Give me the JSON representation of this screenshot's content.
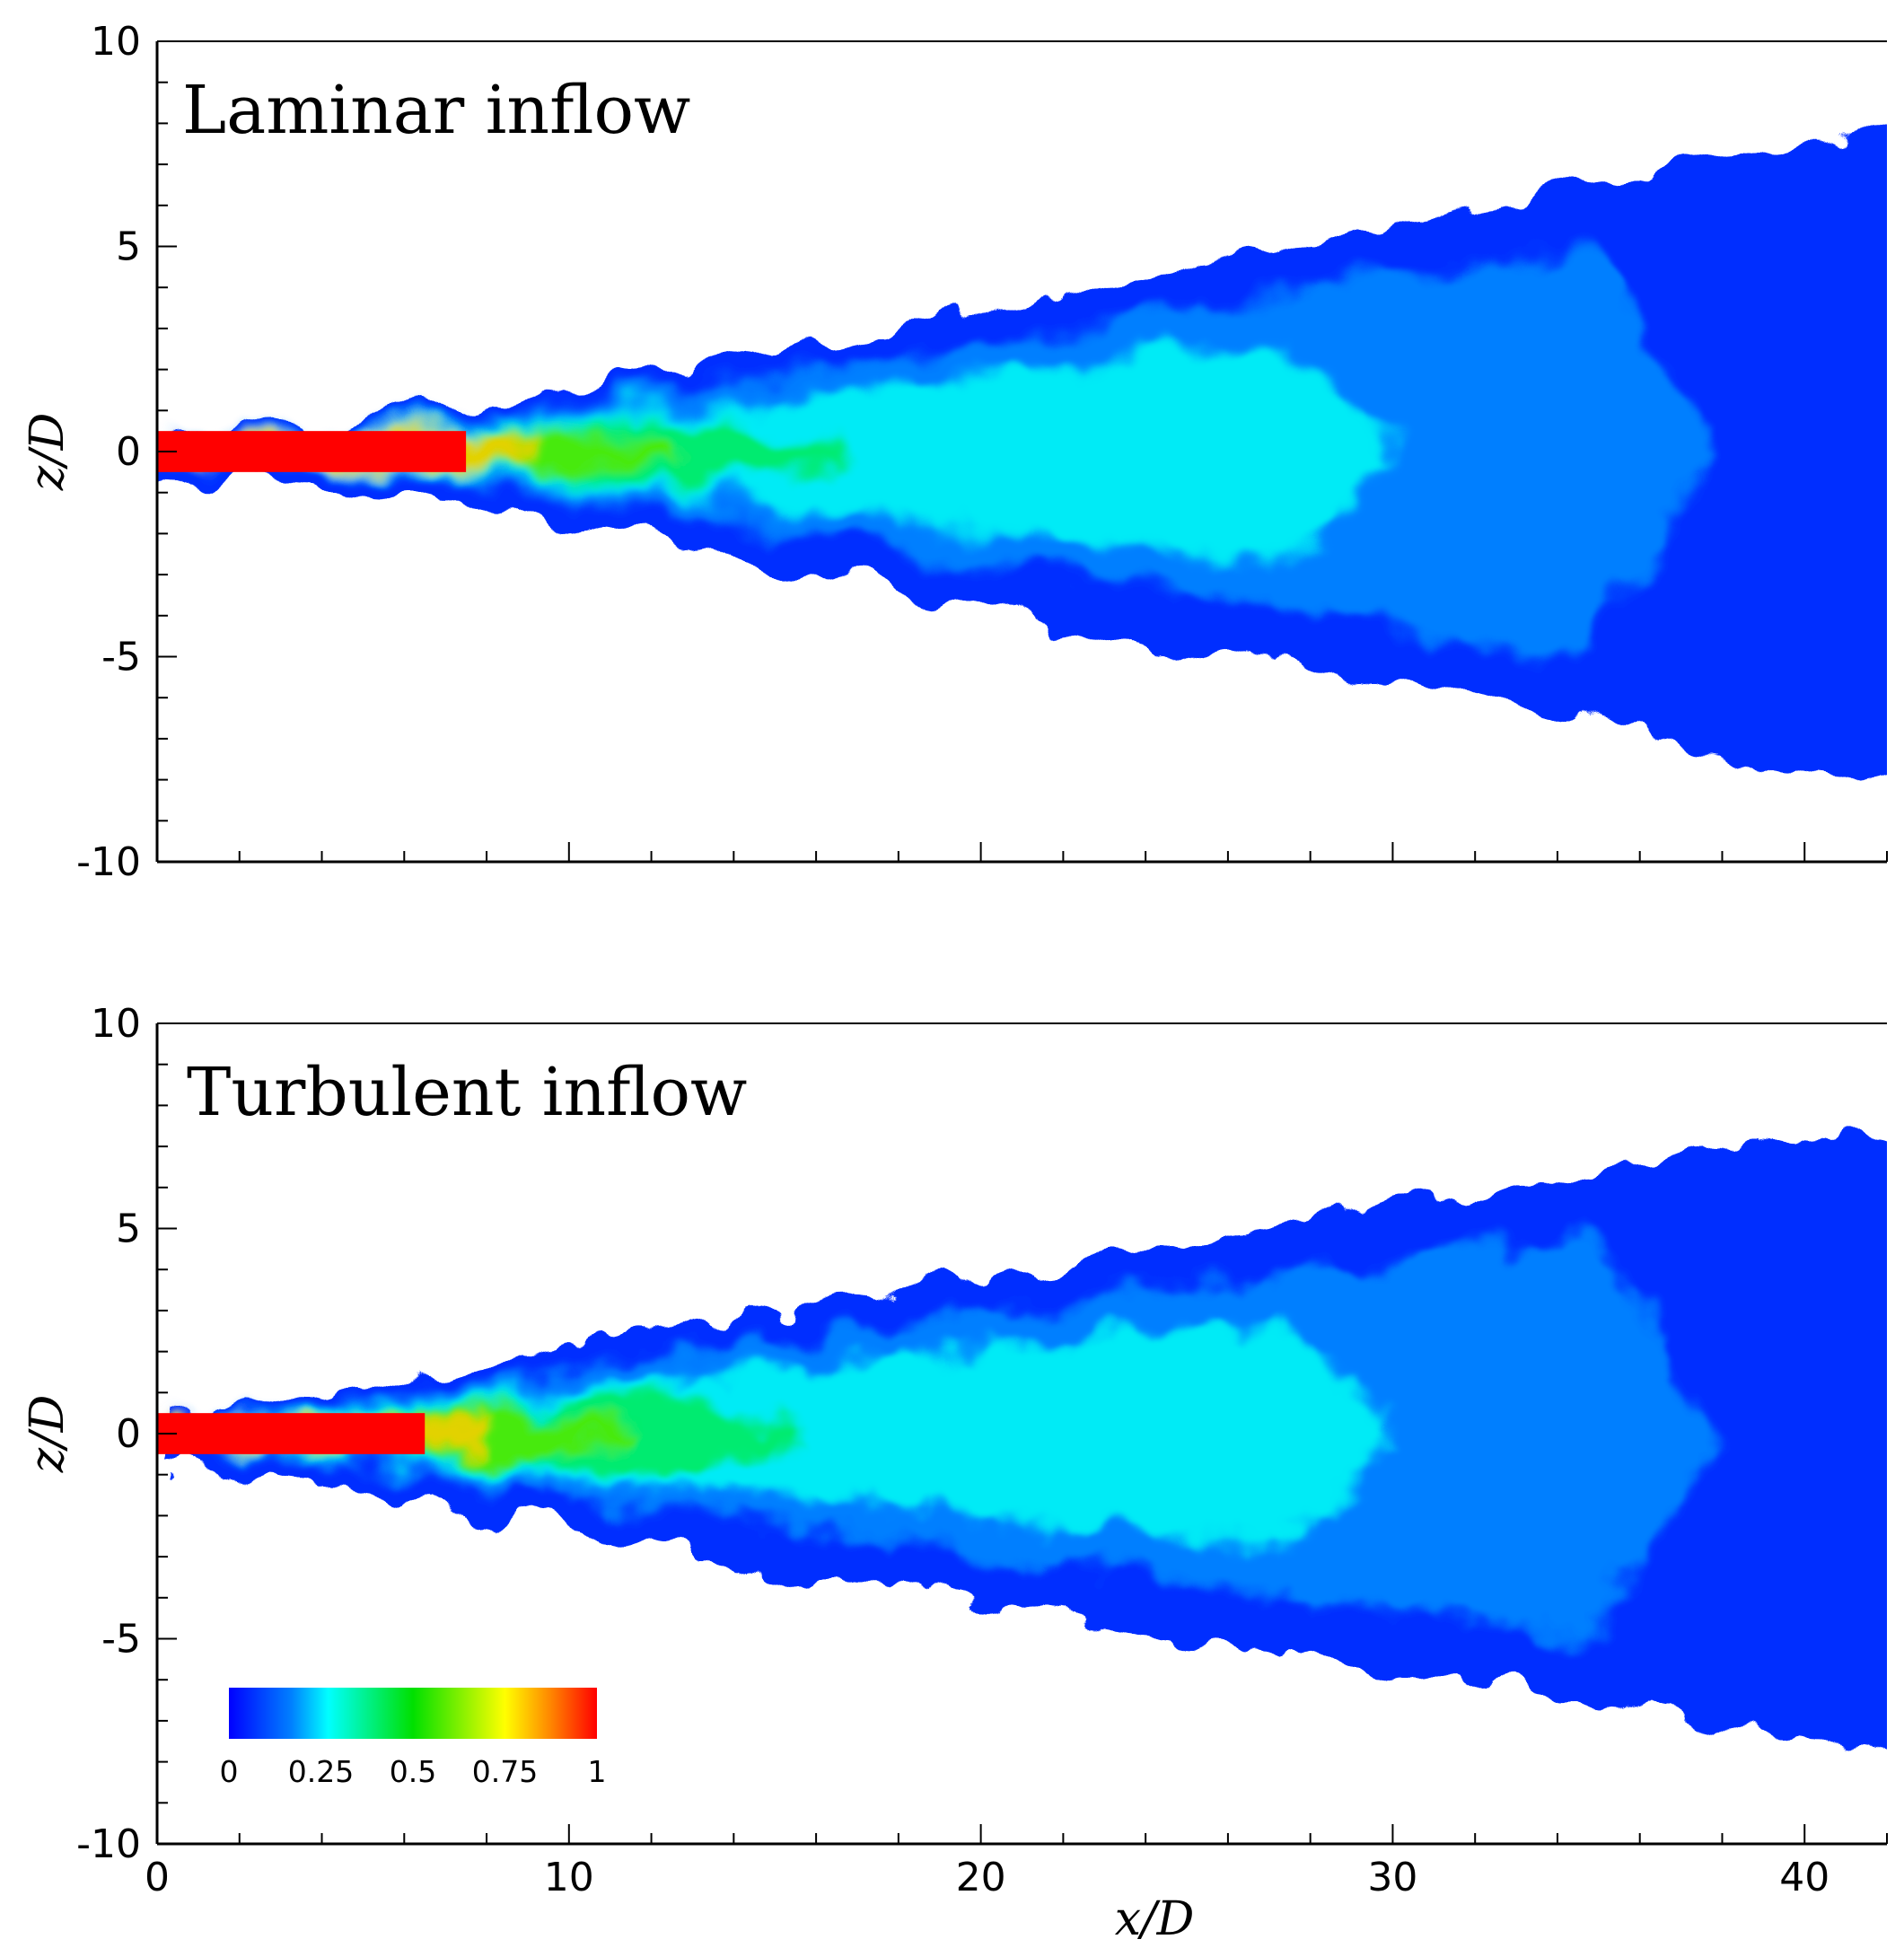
{
  "chart_data": [
    {
      "type": "heatmap",
      "title": "Laminar inflow",
      "xlabel": "",
      "ylabel": "z/D",
      "xlim": [
        0,
        42
      ],
      "ylim": [
        -10,
        10
      ],
      "x_ticks": [
        0,
        10,
        20,
        30,
        40
      ],
      "y_ticks": [
        -10,
        -5,
        0,
        5,
        10
      ],
      "y_tick_labels": [
        "-10",
        "-5",
        "0",
        "5",
        "10"
      ],
      "x_tick_labels_shown": false,
      "field": {
        "description_hidden": true,
        "core_length": 7.5,
        "spread_start": 7,
        "half_width_at_end": 7.5
      }
    },
    {
      "type": "heatmap",
      "title": "Turbulent inflow",
      "xlabel": "x/D",
      "ylabel": "z/D",
      "xlim": [
        0,
        42
      ],
      "ylim": [
        -10,
        10
      ],
      "x_ticks": [
        0,
        10,
        20,
        30,
        40
      ],
      "x_tick_labels": [
        "0",
        "10",
        "20",
        "30",
        "40"
      ],
      "y_ticks": [
        -10,
        -5,
        0,
        5,
        10
      ],
      "y_tick_labels": [
        "-10",
        "-5",
        "0",
        "5",
        "10"
      ],
      "field": {
        "description_hidden": true,
        "core_length": 6.5,
        "spread_start": 1,
        "half_width_at_end": 7.5
      }
    }
  ],
  "colorbar": {
    "range": [
      0,
      1
    ],
    "ticks": [
      0,
      0.25,
      0.5,
      0.75,
      1
    ],
    "tick_labels": [
      "0",
      "0.25",
      "0.5",
      "0.75",
      "1"
    ],
    "colors": [
      "#0000ff",
      "#0070ff",
      "#00e5ff",
      "#00dd44",
      "#00e600",
      "#ffff00",
      "#ff8000",
      "#ff0000"
    ]
  }
}
